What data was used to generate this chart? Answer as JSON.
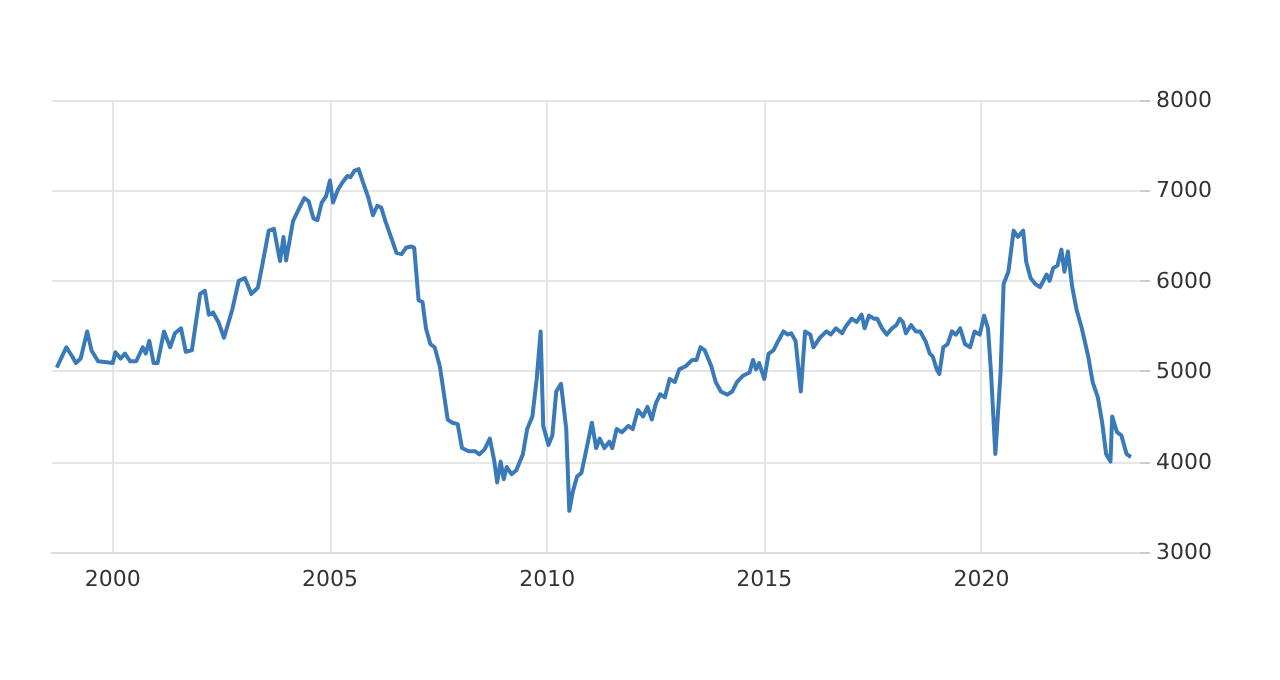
{
  "chart_data": {
    "type": "line",
    "color": "#3a7ab8",
    "marker": "none",
    "line_style": "solid",
    "grid": true,
    "xlim": [
      1998.6,
      2023.65
    ],
    "xticks": [
      2000,
      2005,
      2010,
      2015,
      2020
    ],
    "ylim": [
      3000,
      8000
    ],
    "yticks": [
      3000,
      4000,
      5000,
      6000,
      7000,
      8000
    ],
    "x": [
      1998.71,
      1998.93,
      1999.07,
      1999.15,
      1999.26,
      1999.41,
      1999.51,
      1999.66,
      2000.0,
      2000.06,
      2000.18,
      2000.28,
      2000.4,
      2000.54,
      2000.69,
      2000.76,
      2000.84,
      2000.94,
      2001.03,
      2001.18,
      2001.32,
      2001.43,
      2001.57,
      2001.68,
      2001.82,
      2002.01,
      2002.12,
      2002.21,
      2002.31,
      2002.43,
      2002.56,
      2002.75,
      2002.9,
      2003.04,
      2003.19,
      2003.34,
      2003.44,
      2003.59,
      2003.71,
      2003.85,
      2003.93,
      2003.99,
      2004.15,
      2004.29,
      2004.41,
      2004.51,
      2004.62,
      2004.71,
      2004.81,
      2004.91,
      2005.0,
      2005.07,
      2005.18,
      2005.29,
      2005.4,
      2005.47,
      2005.56,
      2005.66,
      2005.76,
      2005.88,
      2005.99,
      2006.09,
      2006.18,
      2006.28,
      2006.43,
      2006.53,
      2006.65,
      2006.75,
      2006.87,
      2006.94,
      2007.04,
      2007.13,
      2007.21,
      2007.31,
      2007.41,
      2007.53,
      2007.71,
      2007.82,
      2007.94,
      2008.04,
      2008.19,
      2008.34,
      2008.44,
      2008.56,
      2008.68,
      2008.78,
      2008.85,
      2008.93,
      2009.0,
      2009.07,
      2009.18,
      2009.29,
      2009.44,
      2009.54,
      2009.66,
      2009.76,
      2009.85,
      2009.91,
      2010.03,
      2010.12,
      2010.21,
      2010.32,
      2010.44,
      2010.51,
      2010.59,
      2010.69,
      2010.79,
      2010.91,
      2011.03,
      2011.13,
      2011.21,
      2011.32,
      2011.43,
      2011.5,
      2011.6,
      2011.72,
      2011.87,
      2011.97,
      2012.09,
      2012.21,
      2012.31,
      2012.41,
      2012.5,
      2012.6,
      2012.71,
      2012.82,
      2012.94,
      2013.04,
      2013.19,
      2013.34,
      2013.44,
      2013.53,
      2013.63,
      2013.78,
      2013.88,
      2014.0,
      2014.15,
      2014.26,
      2014.37,
      2014.51,
      2014.66,
      2014.74,
      2014.81,
      2014.88,
      2015.0,
      2015.1,
      2015.21,
      2015.32,
      2015.44,
      2015.54,
      2015.62,
      2015.72,
      2015.84,
      2015.94,
      2016.06,
      2016.13,
      2016.28,
      2016.43,
      2016.53,
      2016.65,
      2016.79,
      2016.87,
      2017.01,
      2017.13,
      2017.24,
      2017.31,
      2017.41,
      2017.53,
      2017.6,
      2017.71,
      2017.82,
      2017.94,
      2018.04,
      2018.12,
      2018.19,
      2018.26,
      2018.38,
      2018.49,
      2018.59,
      2018.71,
      2018.81,
      2018.88,
      2018.97,
      2019.03,
      2019.12,
      2019.22,
      2019.32,
      2019.41,
      2019.51,
      2019.62,
      2019.74,
      2019.84,
      2019.96,
      2020.06,
      2020.15,
      2020.22,
      2020.32,
      2020.44,
      2020.51,
      2020.62,
      2020.74,
      2020.84,
      2020.96,
      2021.03,
      2021.13,
      2021.24,
      2021.35,
      2021.5,
      2021.57,
      2021.65,
      2021.75,
      2021.84,
      2021.91,
      2021.99,
      2022.09,
      2022.19,
      2022.31,
      2022.46,
      2022.56,
      2022.68,
      2022.78,
      2022.87,
      2022.97,
      2023.01,
      2023.12,
      2023.22,
      2023.34,
      2023.44
    ],
    "values": [
      5040,
      5265,
      5160,
      5090,
      5140,
      5440,
      5230,
      5110,
      5090,
      5210,
      5140,
      5195,
      5110,
      5110,
      5265,
      5195,
      5335,
      5090,
      5090,
      5440,
      5265,
      5420,
      5475,
      5215,
      5230,
      5855,
      5890,
      5625,
      5650,
      5545,
      5370,
      5680,
      6000,
      6030,
      5855,
      5925,
      6170,
      6555,
      6575,
      6220,
      6485,
      6225,
      6660,
      6800,
      6915,
      6880,
      6690,
      6670,
      6865,
      6935,
      7110,
      6865,
      7005,
      7090,
      7160,
      7145,
      7215,
      7235,
      7090,
      6925,
      6725,
      6830,
      6810,
      6655,
      6450,
      6310,
      6295,
      6365,
      6380,
      6365,
      5785,
      5765,
      5475,
      5300,
      5265,
      5055,
      4465,
      4430,
      4415,
      4150,
      4115,
      4115,
      4080,
      4135,
      4255,
      4015,
      3770,
      4000,
      3805,
      3940,
      3860,
      3905,
      4080,
      4360,
      4500,
      4915,
      5440,
      4395,
      4185,
      4290,
      4775,
      4860,
      4360,
      3455,
      3665,
      3835,
      3875,
      4150,
      4430,
      4150,
      4255,
      4150,
      4220,
      4150,
      4360,
      4325,
      4395,
      4360,
      4570,
      4500,
      4605,
      4465,
      4640,
      4745,
      4710,
      4915,
      4880,
      5020,
      5055,
      5125,
      5125,
      5265,
      5230,
      5055,
      4880,
      4775,
      4740,
      4775,
      4880,
      4950,
      4985,
      5125,
      5020,
      5090,
      4915,
      5195,
      5230,
      5335,
      5440,
      5405,
      5420,
      5335,
      4775,
      5440,
      5405,
      5265,
      5370,
      5440,
      5405,
      5475,
      5420,
      5490,
      5580,
      5545,
      5625,
      5475,
      5615,
      5580,
      5580,
      5475,
      5405,
      5475,
      5510,
      5580,
      5545,
      5420,
      5510,
      5440,
      5440,
      5335,
      5195,
      5160,
      5020,
      4970,
      5265,
      5300,
      5440,
      5405,
      5475,
      5300,
      5265,
      5440,
      5405,
      5615,
      5475,
      4985,
      4085,
      4985,
      5965,
      6100,
      6555,
      6485,
      6555,
      6210,
      6030,
      5965,
      5930,
      6070,
      6000,
      6140,
      6170,
      6345,
      6100,
      6325,
      5930,
      5680,
      5475,
      5160,
      4880,
      4710,
      4430,
      4085,
      4000,
      4500,
      4325,
      4290,
      4085,
      4050
    ]
  }
}
